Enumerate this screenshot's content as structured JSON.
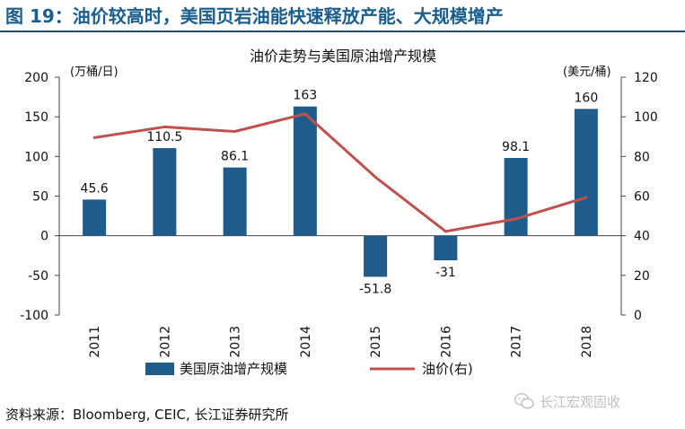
{
  "figure": {
    "title": "图 19：油价较高时，美国页岩油能快速释放产能、大规模增产",
    "source": "资料来源：Bloomberg, CEIC, 长江证券研究所",
    "watermark": "长江宏观固收",
    "watermark_icon": "wechat-icon"
  },
  "chart_data": {
    "type": "bar+line",
    "title": "油价走势与美国原油增产规模",
    "categories": [
      "2011",
      "2012",
      "2013",
      "2014",
      "2015",
      "2016",
      "2017",
      "2018"
    ],
    "series": [
      {
        "name": "美国原油增产规模",
        "type": "bar",
        "axis": "left",
        "color": "#1f5c8b",
        "values": [
          45.6,
          110.5,
          86.1,
          163,
          -51.8,
          -31,
          98.1,
          160
        ],
        "labels": [
          "45.6",
          "110.5",
          "86.1",
          "163",
          "-51.8",
          "-31",
          "98.1",
          "160"
        ]
      },
      {
        "name": "油价(右)",
        "type": "line",
        "axis": "right",
        "color": "#c0504d",
        "values": [
          89.5,
          94.9,
          92.6,
          101.5,
          69.6,
          42.2,
          48.5,
          59.3
        ]
      }
    ],
    "left_axis": {
      "unit": "(万桶/日)",
      "ylim": [
        -100,
        200
      ],
      "ticks": [
        -100,
        -50,
        0,
        50,
        100,
        150,
        200
      ],
      "tick_labels": [
        "-100",
        "-50",
        "0",
        "50",
        "100",
        "150",
        "200"
      ]
    },
    "right_axis": {
      "unit": "(美元/桶)",
      "ylim": [
        0,
        120
      ],
      "ticks": [
        0,
        20,
        40,
        60,
        80,
        100,
        120
      ],
      "tick_labels": [
        "0",
        "20",
        "40",
        "60",
        "80",
        "100",
        "120"
      ]
    },
    "grid": false,
    "legend_position": "bottom"
  }
}
